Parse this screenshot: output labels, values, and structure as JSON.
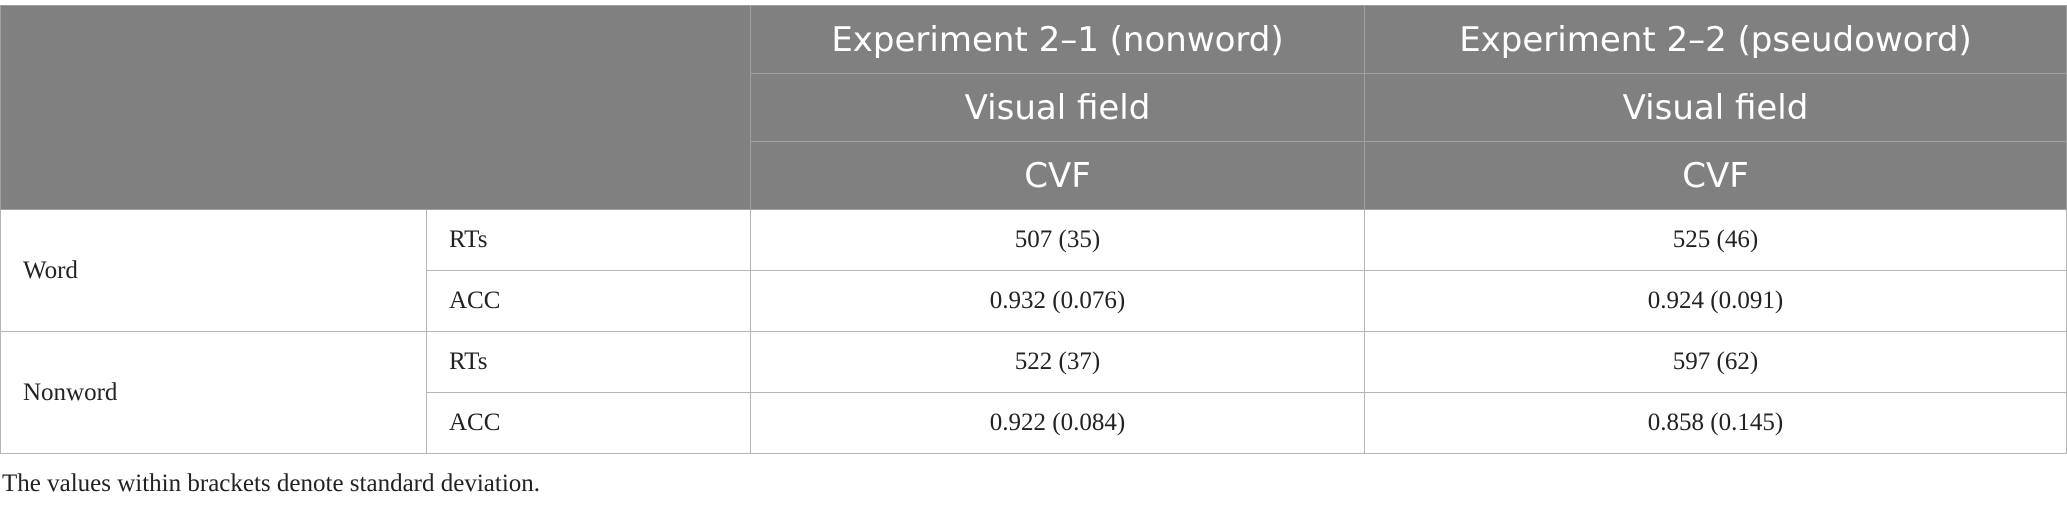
{
  "table": {
    "header": {
      "experiments": [
        "Experiment 2–1 (nonword)",
        "Experiment 2–2 (pseudoword)"
      ],
      "subheaders": [
        "Visual field",
        "Visual field"
      ],
      "fields": [
        "CVF",
        "CVF"
      ]
    },
    "groups": [
      {
        "label": "Word",
        "rows": [
          {
            "measure": "RTs",
            "values": [
              "507 (35)",
              "525 (46)"
            ]
          },
          {
            "measure": "ACC",
            "values": [
              "0.932 (0.076)",
              "0.924 (0.091)"
            ]
          }
        ]
      },
      {
        "label": "Nonword",
        "rows": [
          {
            "measure": "RTs",
            "values": [
              "522 (37)",
              "597 (62)"
            ]
          },
          {
            "measure": "ACC",
            "values": [
              "0.922 (0.084)",
              "0.858 (0.145)"
            ]
          }
        ]
      }
    ]
  },
  "footnote": "The values within brackets denote standard deviation."
}
